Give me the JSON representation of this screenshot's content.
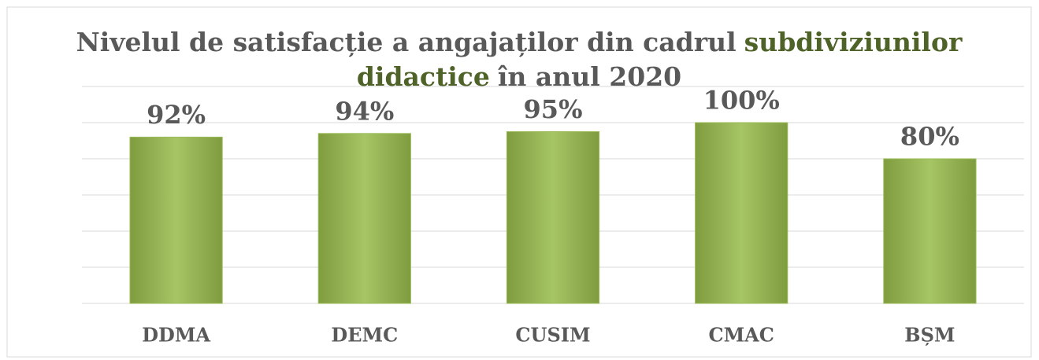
{
  "chart_data": {
    "type": "bar",
    "title": [
      [
        {
          "text": "Nivelul de satisfacție a angajaților din cadrul",
          "color": "#595959"
        },
        {
          "text": "subdiviziunilor",
          "color": "#4f6228"
        }
      ],
      [
        {
          "text": "didactice",
          "color": "#4f6228"
        },
        {
          "text": "în anul 2020",
          "color": "#595959"
        }
      ]
    ],
    "categories": [
      "DDMA",
      "DEMC",
      "CUSIM",
      "CMAC",
      "BȘM"
    ],
    "values": [
      92,
      94,
      95,
      100,
      80
    ],
    "value_labels": [
      "92%",
      "94%",
      "95%",
      "100%",
      "80%"
    ],
    "color": "#9bbb59",
    "ylim": [
      0,
      120
    ],
    "yticks": [
      0,
      20,
      40,
      60,
      80,
      100,
      120
    ],
    "grid": true
  }
}
